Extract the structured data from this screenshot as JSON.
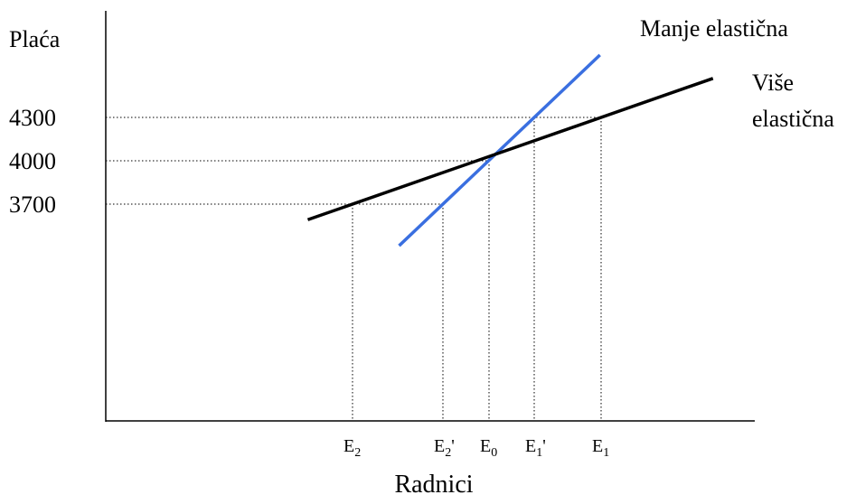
{
  "chart_data": {
    "type": "line",
    "title": "",
    "ylabel": "Plaća",
    "xlabel": "Radnici",
    "y_ticks": [
      {
        "value": 4300,
        "label": "4300"
      },
      {
        "value": 4000,
        "label": "4000"
      },
      {
        "value": 3700,
        "label": "3700"
      }
    ],
    "x_ticks": [
      {
        "key": "E2",
        "base": "E",
        "sub": "2",
        "prime": ""
      },
      {
        "key": "E2p",
        "base": "E",
        "sub": "2",
        "prime": "'"
      },
      {
        "key": "E0",
        "base": "E",
        "sub": "0",
        "prime": ""
      },
      {
        "key": "E1p",
        "base": "E",
        "sub": "1",
        "prime": "'"
      },
      {
        "key": "E1",
        "base": "E",
        "sub": "1",
        "prime": ""
      }
    ],
    "series": [
      {
        "name": "Manje elastična",
        "color": "#3a6fe0",
        "points": [
          {
            "x": "E2p",
            "y": 3700
          },
          {
            "x": "E0",
            "y": 4000
          },
          {
            "x": "E1p",
            "y": 4300
          }
        ]
      },
      {
        "name": "Više elastična",
        "color": "#000000",
        "points": [
          {
            "x": "E2",
            "y": 3700
          },
          {
            "x": "E0",
            "y": 4000
          },
          {
            "x": "E1",
            "y": 4300
          }
        ]
      }
    ],
    "curve_labels": {
      "less_elastic": "Manje elastična",
      "more_elastic_line1": "Više",
      "more_elastic_line2": "elastična"
    },
    "reference_lines": "dotted"
  }
}
